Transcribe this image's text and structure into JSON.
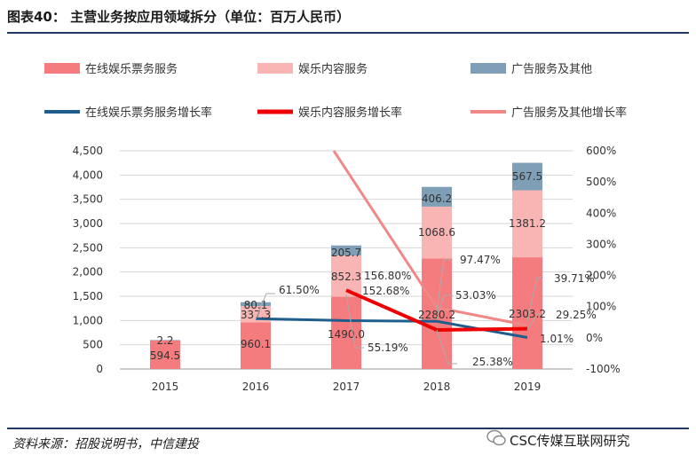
{
  "header": {
    "title": "图表40：  主营业务按应用领域拆分（单位：百万人民币）"
  },
  "footer": {
    "source": "资料来源：招股说明书，中信建投",
    "brand": "CSC传媒互联网研究"
  },
  "colors": {
    "ticket": "#f47c7e",
    "content": "#f9b4b4",
    "ad": "#7f9fb7",
    "ticket_growth": "#1f5e8c",
    "content_growth": "#ee0000",
    "ad_growth": "#f08888",
    "rule": "#1f3864"
  },
  "chart_data": {
    "type": "bar",
    "stacked": true,
    "categories": [
      "2015",
      "2016",
      "2017",
      "2018",
      "2019"
    ],
    "series": [
      {
        "name": "在线娱乐票务服务",
        "values": [
          594.5,
          960.1,
          1490.0,
          2280.2,
          2303.2
        ],
        "labels": [
          "594.5",
          "960.1",
          "1490.0",
          "2280.2",
          "2303.2"
        ]
      },
      {
        "name": "娱乐内容服务",
        "values": [
          0,
          337.3,
          852.3,
          1068.6,
          1381.2
        ],
        "labels": [
          "",
          "337.3",
          "852.3",
          "1068.6",
          "1381.2"
        ]
      },
      {
        "name": "广告服务及其他",
        "values": [
          2.2,
          80.1,
          205.7,
          406.2,
          567.5
        ],
        "labels": [
          "2.2",
          "80.1",
          "205.7",
          "406.2",
          "567.5"
        ]
      }
    ],
    "growth_series": [
      {
        "name": "在线娱乐票务服务增长率",
        "values": [
          null,
          61.5,
          55.19,
          53.03,
          1.01
        ],
        "labels": [
          "",
          "61.50%",
          "55.19%",
          "53.03%",
          "1.01%"
        ]
      },
      {
        "name": "娱乐内容服务增长率",
        "values": [
          null,
          null,
          152.68,
          25.38,
          29.25
        ],
        "labels": [
          "",
          "",
          "152.68%",
          "25.38%",
          "29.25%"
        ]
      },
      {
        "name": "广告服务及其他增长率",
        "values": [
          null,
          null,
          156.8,
          97.47,
          39.71
        ],
        "labels": [
          "",
          "",
          "156.80%",
          "97.47%",
          "39.71%"
        ]
      }
    ],
    "ad_growth_2017_off_axis": true,
    "y_left": {
      "min": 0,
      "max": 4500,
      "step": 500,
      "ticks": [
        "0",
        "500",
        "1,000",
        "1,500",
        "2,000",
        "2,500",
        "3,000",
        "3,500",
        "4,000",
        "4,500"
      ]
    },
    "y_right": {
      "min": -100,
      "max": 600,
      "step": 100,
      "ticks": [
        "-100%",
        "0%",
        "100%",
        "200%",
        "300%",
        "400%",
        "500%",
        "600%"
      ]
    },
    "legend": [
      "在线娱乐票务服务",
      "娱乐内容服务",
      "广告服务及其他",
      "在线娱乐票务服务增长率",
      "娱乐内容服务增长率",
      "广告服务及其他增长率"
    ],
    "legend_position": "top",
    "grid": true
  }
}
